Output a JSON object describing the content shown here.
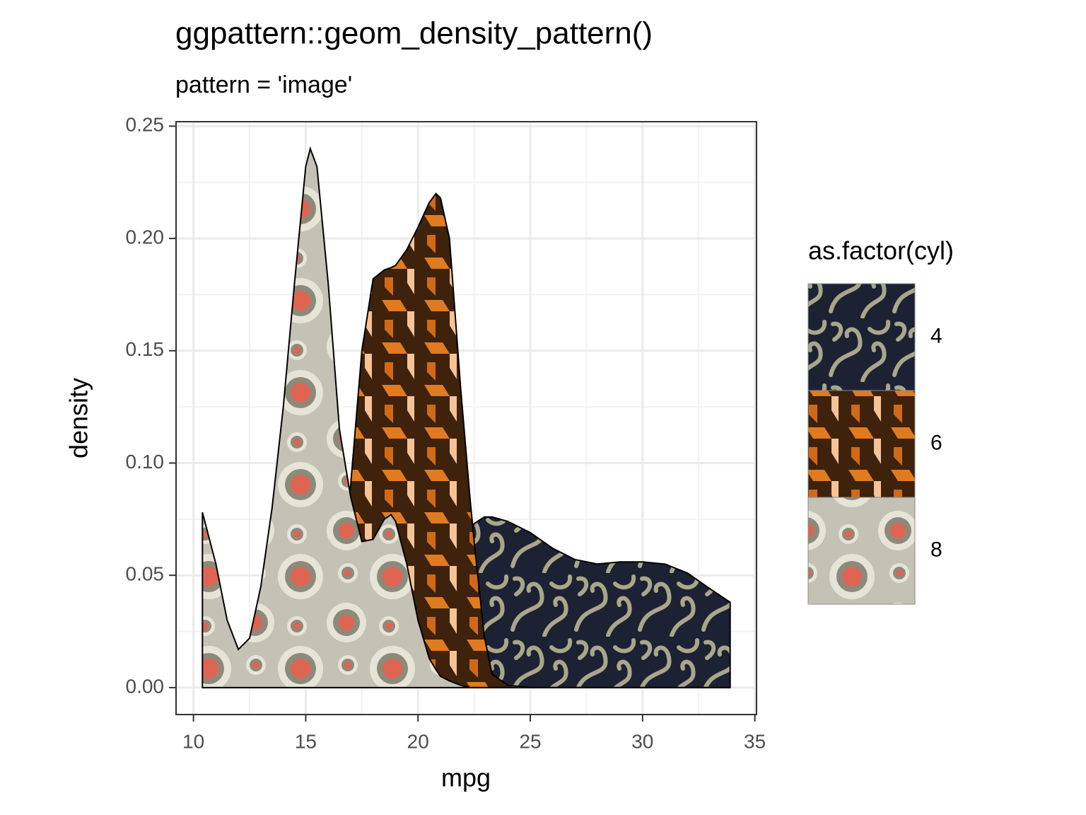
{
  "chart_data": {
    "type": "area",
    "title": "ggpattern::geom_density_pattern()",
    "subtitle": "pattern = 'image'",
    "x_label": "mpg",
    "y_label": "density",
    "legend_title": "as.factor(cyl)",
    "x": [
      10.4,
      11,
      11.5,
      12,
      12.5,
      13,
      13.5,
      14,
      14.5,
      15,
      15.2,
      15.5,
      16,
      16.5,
      17,
      17.5,
      18,
      18.5,
      18.8,
      19,
      19.5,
      20,
      20.5,
      20.8,
      21,
      21.4,
      21.9,
      22.3,
      22.5,
      22.95,
      23.3,
      24,
      25,
      26,
      27,
      28,
      29,
      30,
      31,
      32,
      33,
      33.9
    ],
    "series": [
      {
        "name": "4",
        "color": "#1c2234",
        "values": [
          0,
          0,
          0,
          0,
          0,
          0,
          0,
          0,
          0,
          0,
          0,
          0,
          0,
          0,
          0,
          0,
          0,
          0,
          0,
          0.001,
          0.003,
          0.007,
          0.012,
          0.016,
          0.02,
          0.03,
          0.055,
          0.068,
          0.073,
          0.076,
          0.076,
          0.074,
          0.069,
          0.062,
          0.057,
          0.055,
          0.056,
          0.056,
          0.055,
          0.051,
          0.044,
          0.038
        ]
      },
      {
        "name": "6",
        "color": "#3e220c",
        "values": [
          0,
          0,
          0,
          0,
          0,
          0,
          0,
          0,
          0,
          0.004,
          0.006,
          0.01,
          0.025,
          0.05,
          0.09,
          0.15,
          0.182,
          0.186,
          0.187,
          0.188,
          0.195,
          0.205,
          0.216,
          0.22,
          0.218,
          0.2,
          0.133,
          0.086,
          0.065,
          0.023,
          0.006,
          0.001,
          0,
          0,
          0,
          0,
          0,
          0,
          0,
          0,
          0,
          0
        ]
      },
      {
        "name": "8",
        "color": "#c4c2b4",
        "values": [
          0.078,
          0.055,
          0.03,
          0.017,
          0.022,
          0.045,
          0.08,
          0.125,
          0.18,
          0.232,
          0.24,
          0.232,
          0.18,
          0.115,
          0.085,
          0.065,
          0.066,
          0.075,
          0.077,
          0.074,
          0.055,
          0.03,
          0.013,
          0.008,
          0.005,
          0.003,
          0.001,
          0,
          0,
          0,
          0,
          0,
          0,
          0,
          0,
          0,
          0,
          0,
          0,
          0,
          0,
          0
        ]
      }
    ],
    "xlim": [
      9.225,
      35.075
    ],
    "ylim": [
      -0.012,
      0.252
    ],
    "xticks": [
      10,
      15,
      20,
      25,
      30,
      35
    ],
    "yticks": [
      {
        "value": 0,
        "label": "0.00"
      },
      {
        "value": 0.05,
        "label": "0.05"
      },
      {
        "value": 0.1,
        "label": "0.10"
      },
      {
        "value": 0.15,
        "label": "0.15"
      },
      {
        "value": 0.2,
        "label": "0.20"
      },
      {
        "value": 0.25,
        "label": "0.25"
      }
    ],
    "grid": true
  }
}
